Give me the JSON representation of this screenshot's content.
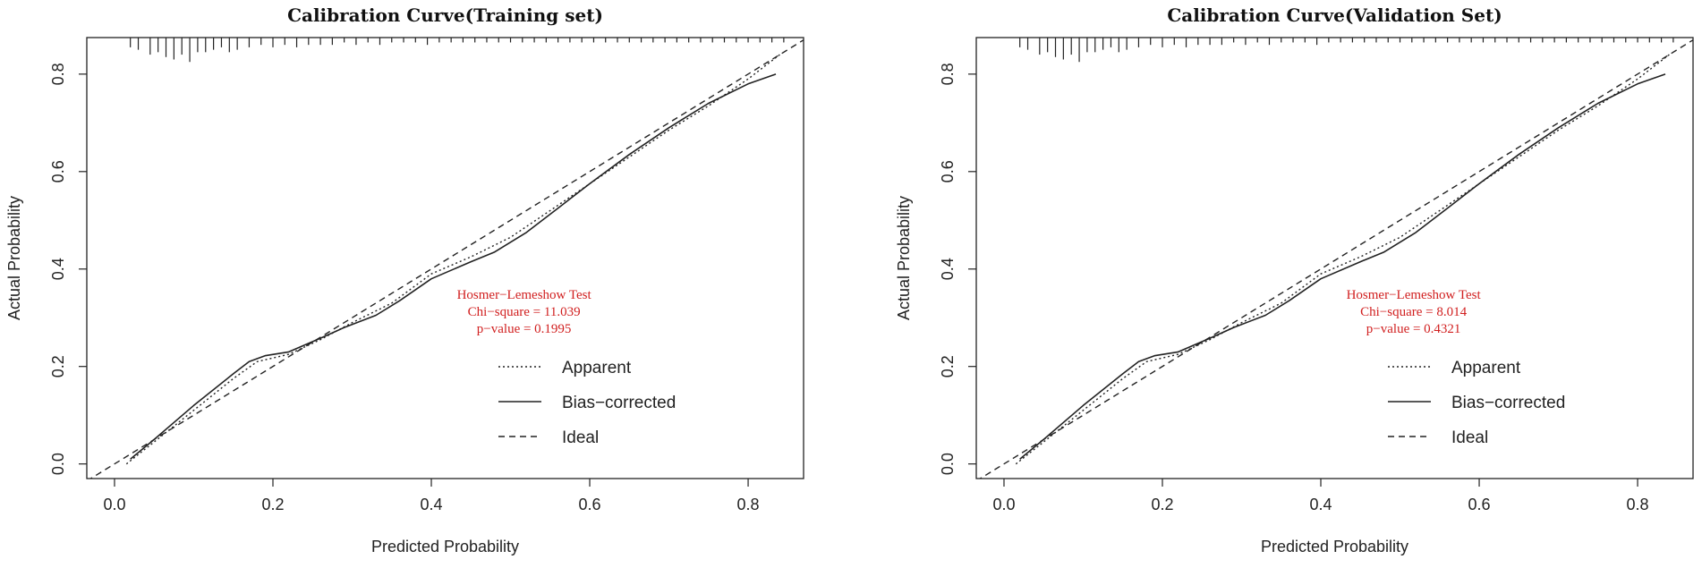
{
  "colors": {
    "annotation": "#d11f1f",
    "line": "#222222",
    "background": "#ffffff"
  },
  "chart_data": [
    {
      "type": "line",
      "title": "Calibration Curve(Training set)",
      "xlabel": "Predicted Probability",
      "ylabel": "Actual Probability",
      "xlim": [
        -0.035,
        0.87
      ],
      "ylim": [
        -0.03,
        0.875
      ],
      "xticks": [
        "0.0",
        "0.2",
        "0.4",
        "0.6",
        "0.8"
      ],
      "yticks": [
        "0.0",
        "0.2",
        "0.4",
        "0.6",
        "0.8"
      ],
      "annotation": {
        "test": "Hosmer−Lemeshow Test",
        "chi_square": "Chi−square = 11.039",
        "p_value": "p−value = 0.1995"
      },
      "legend": {
        "position": "bottom-right",
        "entries": [
          "Apparent",
          "Bias−corrected",
          "Ideal"
        ]
      },
      "series": [
        {
          "name": "Apparent",
          "style": "dotted",
          "x": [
            0.015,
            0.05,
            0.1,
            0.15,
            0.18,
            0.22,
            0.26,
            0.3,
            0.35,
            0.4,
            0.45,
            0.5,
            0.55,
            0.6,
            0.65,
            0.7,
            0.75,
            0.8,
            0.84
          ],
          "y": [
            0.0,
            0.045,
            0.11,
            0.175,
            0.21,
            0.225,
            0.255,
            0.29,
            0.33,
            0.39,
            0.425,
            0.465,
            0.52,
            0.575,
            0.63,
            0.685,
            0.735,
            0.79,
            0.84
          ]
        },
        {
          "name": "Bias−corrected",
          "style": "solid",
          "x": [
            0.02,
            0.05,
            0.1,
            0.15,
            0.17,
            0.19,
            0.22,
            0.26,
            0.29,
            0.33,
            0.36,
            0.4,
            0.45,
            0.48,
            0.52,
            0.56,
            0.6,
            0.65,
            0.7,
            0.75,
            0.8,
            0.835
          ],
          "y": [
            0.01,
            0.05,
            0.12,
            0.185,
            0.21,
            0.222,
            0.23,
            0.258,
            0.28,
            0.305,
            0.335,
            0.38,
            0.415,
            0.435,
            0.475,
            0.525,
            0.575,
            0.635,
            0.69,
            0.74,
            0.78,
            0.8
          ]
        },
        {
          "name": "Ideal",
          "style": "dashed",
          "x": [
            -0.035,
            0.87
          ],
          "y": [
            -0.035,
            0.87
          ]
        }
      ],
      "rug": [
        0.02,
        0.03,
        0.045,
        0.055,
        0.065,
        0.075,
        0.085,
        0.095,
        0.105,
        0.115,
        0.125,
        0.135,
        0.145,
        0.155,
        0.17,
        0.185,
        0.2,
        0.215,
        0.23,
        0.245,
        0.26,
        0.275,
        0.29,
        0.305,
        0.32,
        0.335,
        0.35,
        0.365,
        0.38,
        0.395,
        0.41,
        0.425,
        0.44,
        0.455,
        0.47,
        0.485,
        0.5,
        0.515,
        0.53,
        0.545,
        0.56,
        0.575,
        0.59,
        0.605,
        0.62,
        0.635,
        0.65,
        0.665,
        0.68,
        0.695,
        0.71,
        0.725,
        0.74,
        0.755,
        0.77,
        0.785,
        0.8,
        0.815,
        0.83,
        0.845
      ],
      "rug_len": [
        0.02,
        0.025,
        0.035,
        0.03,
        0.04,
        0.045,
        0.035,
        0.05,
        0.03,
        0.03,
        0.025,
        0.02,
        0.03,
        0.025,
        0.02,
        0.015,
        0.02,
        0.015,
        0.02,
        0.015,
        0.015,
        0.015,
        0.01,
        0.015,
        0.01,
        0.015,
        0.01,
        0.01,
        0.01,
        0.015,
        0.01,
        0.01,
        0.01,
        0.01,
        0.01,
        0.01,
        0.01,
        0.01,
        0.01,
        0.01,
        0.01,
        0.01,
        0.01,
        0.01,
        0.01,
        0.01,
        0.01,
        0.01,
        0.01,
        0.01,
        0.01,
        0.01,
        0.01,
        0.01,
        0.01,
        0.01,
        0.01,
        0.01,
        0.01,
        0.01
      ]
    },
    {
      "type": "line",
      "title": "Calibration Curve(Validation Set)",
      "xlabel": "Predicted Probability",
      "ylabel": "Actual Probability",
      "xlim": [
        -0.035,
        0.87
      ],
      "ylim": [
        -0.03,
        0.875
      ],
      "xticks": [
        "0.0",
        "0.2",
        "0.4",
        "0.6",
        "0.8"
      ],
      "yticks": [
        "0.0",
        "0.2",
        "0.4",
        "0.6",
        "0.8"
      ],
      "annotation": {
        "test": "Hosmer−Lemeshow Test",
        "chi_square": "Chi−square = 8.014",
        "p_value": "p−value = 0.4321"
      },
      "legend": {
        "position": "bottom-right",
        "entries": [
          "Apparent",
          "Bias−corrected",
          "Ideal"
        ]
      },
      "series": [
        {
          "name": "Apparent",
          "style": "dotted",
          "x": [
            0.015,
            0.05,
            0.1,
            0.15,
            0.18,
            0.22,
            0.26,
            0.3,
            0.35,
            0.4,
            0.45,
            0.5,
            0.55,
            0.6,
            0.65,
            0.7,
            0.75,
            0.8,
            0.84
          ],
          "y": [
            0.0,
            0.045,
            0.11,
            0.175,
            0.21,
            0.225,
            0.255,
            0.29,
            0.33,
            0.39,
            0.425,
            0.465,
            0.52,
            0.575,
            0.63,
            0.685,
            0.735,
            0.79,
            0.84
          ]
        },
        {
          "name": "Bias−corrected",
          "style": "solid",
          "x": [
            0.02,
            0.05,
            0.1,
            0.15,
            0.17,
            0.19,
            0.22,
            0.26,
            0.29,
            0.33,
            0.36,
            0.4,
            0.45,
            0.48,
            0.52,
            0.56,
            0.6,
            0.65,
            0.7,
            0.75,
            0.8,
            0.835
          ],
          "y": [
            0.01,
            0.05,
            0.12,
            0.185,
            0.21,
            0.222,
            0.23,
            0.258,
            0.28,
            0.305,
            0.335,
            0.38,
            0.415,
            0.435,
            0.475,
            0.525,
            0.575,
            0.635,
            0.69,
            0.74,
            0.78,
            0.8
          ]
        },
        {
          "name": "Ideal",
          "style": "dashed",
          "x": [
            -0.035,
            0.87
          ],
          "y": [
            -0.035,
            0.87
          ]
        }
      ],
      "rug": [
        0.02,
        0.03,
        0.045,
        0.055,
        0.065,
        0.075,
        0.085,
        0.095,
        0.105,
        0.115,
        0.125,
        0.135,
        0.145,
        0.155,
        0.17,
        0.185,
        0.2,
        0.215,
        0.23,
        0.245,
        0.26,
        0.275,
        0.29,
        0.305,
        0.32,
        0.335,
        0.35,
        0.365,
        0.38,
        0.395,
        0.41,
        0.425,
        0.44,
        0.455,
        0.47,
        0.485,
        0.5,
        0.515,
        0.53,
        0.545,
        0.56,
        0.575,
        0.59,
        0.605,
        0.62,
        0.635,
        0.65,
        0.665,
        0.68,
        0.695,
        0.71,
        0.725,
        0.74,
        0.755,
        0.77,
        0.785,
        0.8,
        0.815,
        0.83,
        0.845
      ],
      "rug_len": [
        0.02,
        0.025,
        0.035,
        0.03,
        0.04,
        0.045,
        0.035,
        0.05,
        0.03,
        0.03,
        0.025,
        0.02,
        0.03,
        0.025,
        0.02,
        0.015,
        0.02,
        0.015,
        0.02,
        0.015,
        0.015,
        0.015,
        0.01,
        0.015,
        0.01,
        0.015,
        0.01,
        0.01,
        0.01,
        0.015,
        0.01,
        0.01,
        0.01,
        0.01,
        0.01,
        0.01,
        0.01,
        0.01,
        0.01,
        0.01,
        0.01,
        0.01,
        0.01,
        0.01,
        0.01,
        0.01,
        0.01,
        0.01,
        0.01,
        0.01,
        0.01,
        0.01,
        0.01,
        0.01,
        0.01,
        0.01,
        0.01,
        0.01,
        0.01,
        0.01
      ]
    }
  ]
}
